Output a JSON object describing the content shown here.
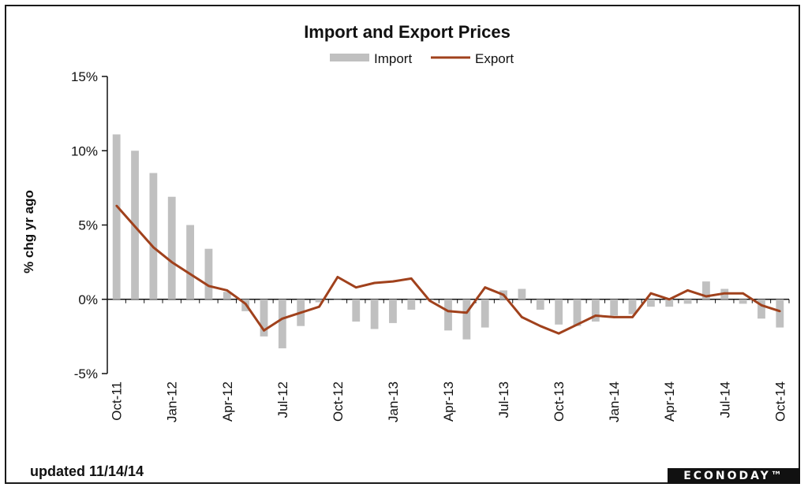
{
  "footer": {
    "updated": "updated 11/14/14"
  },
  "brand": {
    "logo_text": "ECONODAY™"
  },
  "colors": {
    "import": "#c0c0c0",
    "export": "#a0411c"
  },
  "chart_data": {
    "type": "bar",
    "title": "Import and Export Prices",
    "ylabel": "% chg yr ago",
    "xlabel": "",
    "ylim": [
      -5,
      15
    ],
    "y_ticks": [
      "15%",
      "10%",
      "5%",
      "0%",
      "-5%"
    ],
    "y_tick_values": [
      15,
      10,
      5,
      0,
      -5
    ],
    "legend": {
      "position": "top-center",
      "items": [
        "Import",
        "Export"
      ]
    },
    "x_labels": [
      "Oct-11",
      "Jan-12",
      "Apr-12",
      "Jul-12",
      "Oct-12",
      "Jan-13",
      "Apr-13",
      "Jul-13",
      "Oct-13",
      "Jan-14",
      "Apr-14",
      "Jul-14",
      "Oct-14"
    ],
    "x_label_indices": [
      0,
      3,
      6,
      9,
      12,
      15,
      18,
      21,
      24,
      27,
      30,
      33,
      36
    ],
    "series": [
      {
        "name": "Import",
        "kind": "bar",
        "values": [
          11.1,
          10.0,
          8.5,
          6.9,
          5.0,
          3.4,
          0.5,
          -0.8,
          -2.5,
          -3.3,
          -1.8,
          -0.2,
          0.0,
          -1.5,
          -2.0,
          -1.6,
          -0.7,
          0.0,
          -2.1,
          -2.7,
          -1.9,
          0.6,
          0.7,
          -0.7,
          -1.7,
          -1.8,
          -1.5,
          -1.1,
          -1.0,
          -0.5,
          -0.5,
          -0.3,
          1.2,
          0.7,
          -0.3,
          -1.3,
          -1.9
        ]
      },
      {
        "name": "Export",
        "kind": "line",
        "values": [
          6.3,
          4.9,
          3.5,
          2.5,
          1.7,
          0.9,
          0.6,
          -0.3,
          -2.1,
          -1.3,
          -0.9,
          -0.5,
          1.5,
          0.8,
          1.1,
          1.2,
          1.4,
          -0.1,
          -0.8,
          -0.9,
          0.8,
          0.3,
          -1.2,
          -1.8,
          -2.3,
          -1.7,
          -1.1,
          -1.2,
          -1.2,
          0.4,
          0.0,
          0.6,
          0.2,
          0.4,
          0.4,
          -0.4,
          -0.8
        ]
      }
    ]
  }
}
